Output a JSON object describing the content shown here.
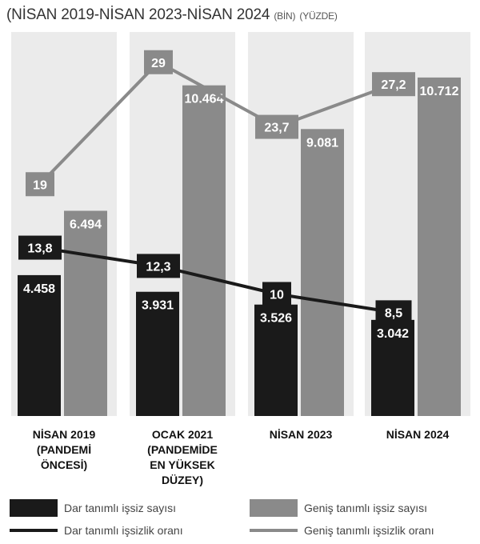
{
  "header": {
    "title_main": "(NİSAN 2019-NİSAN 2023-NİSAN 2024",
    "title_unit1": "(BİN)",
    "title_unit2": "(YÜZDE)"
  },
  "chart_data": {
    "type": "bar",
    "title": "(NİSAN 2019-NİSAN 2023-NİSAN 2024 (BİN) (YÜZDE)",
    "categories": [
      [
        "NİSAN 2019",
        "(PANDEMİ",
        "ÖNCESİ)"
      ],
      [
        "OCAK 2021",
        "(PANDEMİDE",
        "EN YÜKSEK",
        "DÜZEY)"
      ],
      [
        "NİSAN 2023"
      ],
      [
        "NİSAN 2024"
      ]
    ],
    "bar_series": [
      {
        "name": "Dar tanımlı işsiz sayısı",
        "values": [
          4458,
          3931,
          3526,
          3042
        ],
        "labels": [
          "4.458",
          "3.931",
          "3.526",
          "3.042"
        ],
        "color": "#1a1a1a"
      },
      {
        "name": "Geniş tanımlı işsiz sayısı",
        "values": [
          6494,
          10464,
          9081,
          10712
        ],
        "labels": [
          "6.494",
          "10.464",
          "9.081",
          "10.712"
        ],
        "color": "#8a8a8a"
      }
    ],
    "line_series": [
      {
        "name": "Dar tanımlı işsizlik oranı",
        "values": [
          13.8,
          12.3,
          10,
          8.5
        ],
        "labels": [
          "13,8",
          "12,3",
          "10",
          "8,5"
        ],
        "color": "#1a1a1a"
      },
      {
        "name": "Geniş tanımlı işsizlik oranı",
        "values": [
          19,
          29,
          23.7,
          27.2
        ],
        "labels": [
          "19",
          "29",
          "23,7",
          "27,2"
        ],
        "color": "#8a8a8a"
      }
    ],
    "bar_ylim": [
      0,
      12000
    ],
    "line_ylim": [
      0,
      32
    ],
    "grid": false,
    "legend_position": "bottom",
    "background_panel_color": "#ebebeb"
  }
}
